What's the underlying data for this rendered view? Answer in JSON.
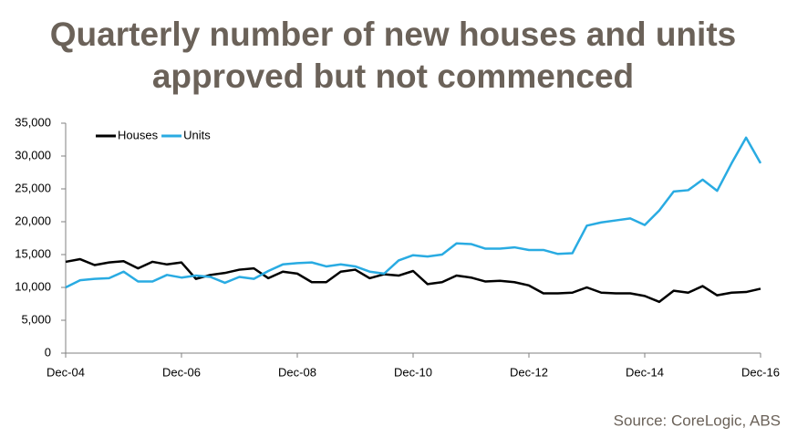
{
  "chart_data": {
    "type": "line",
    "title": "Quarterly number of new houses and units",
    "subtitle": "approved but not commenced",
    "source": "Source: CoreLogic, ABS",
    "categories": [
      "Dec-04",
      null,
      null,
      null,
      null,
      null,
      null,
      null,
      "Dec-06",
      null,
      null,
      null,
      null,
      null,
      null,
      null,
      "Dec-08",
      null,
      null,
      null,
      null,
      null,
      null,
      null,
      "Dec-10",
      null,
      null,
      null,
      null,
      null,
      null,
      null,
      "Dec-12",
      null,
      null,
      null,
      null,
      null,
      null,
      null,
      "Dec-14",
      null,
      null,
      null,
      null,
      null,
      null,
      null,
      "Dec-16"
    ],
    "series": [
      {
        "name": "Houses",
        "color": "#000000",
        "values": [
          13900,
          14300,
          13400,
          13800,
          14000,
          12900,
          13900,
          13500,
          13800,
          11300,
          11900,
          12200,
          12700,
          12900,
          11400,
          12400,
          12100,
          10800,
          10800,
          12400,
          12700,
          11400,
          12000,
          11800,
          12500,
          10500,
          10800,
          11800,
          11500,
          10900,
          11000,
          10800,
          10300,
          9100,
          9100,
          9200,
          10000,
          9200,
          9100,
          9100,
          8700,
          7800,
          9500,
          9200,
          10200,
          8800,
          9200,
          9300,
          9800
        ]
      },
      {
        "name": "Units",
        "color": "#29abe2",
        "values": [
          10000,
          11100,
          11300,
          11400,
          12400,
          10900,
          10900,
          11900,
          11500,
          11800,
          11600,
          10700,
          11600,
          11300,
          12500,
          13500,
          13700,
          13800,
          13200,
          13500,
          13200,
          12400,
          12100,
          14100,
          14900,
          14700,
          15000,
          16700,
          16600,
          15900,
          15900,
          16100,
          15700,
          15700,
          15100,
          15200,
          19400,
          19900,
          20200,
          20500,
          19500,
          21700,
          24600,
          24800,
          26400,
          24700,
          28900,
          32800,
          28900
        ]
      }
    ],
    "ylim": [
      0,
      35000
    ],
    "yticks": [
      0,
      {
        "value": 5000,
        "label": "5,000"
      },
      {
        "value": 10000,
        "label": "10,000"
      },
      {
        "value": 15000,
        "label": "15,000"
      },
      {
        "value": 20000,
        "label": "20,000"
      },
      {
        "value": 25000,
        "label": "25,000"
      },
      {
        "value": 30000,
        "label": "30,000"
      },
      {
        "value": 35000,
        "label": "35,000"
      }
    ],
    "grid": false,
    "legend": "top-left"
  }
}
